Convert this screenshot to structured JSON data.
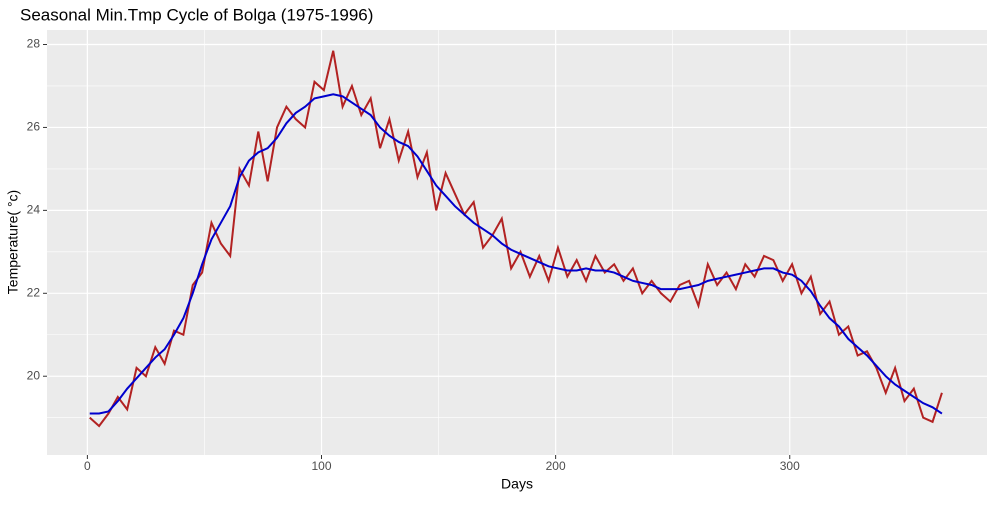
{
  "chart_data": {
    "type": "line",
    "title": "Seasonal Min.Tmp Cycle of Bolga (1975-1996)",
    "x_label": "Days",
    "y_label": "Temperature( °c)",
    "x": [
      1,
      5,
      9,
      13,
      17,
      21,
      25,
      29,
      33,
      37,
      41,
      45,
      49,
      53,
      57,
      61,
      65,
      69,
      73,
      77,
      81,
      85,
      89,
      93,
      97,
      101,
      105,
      109,
      113,
      117,
      121,
      125,
      129,
      133,
      137,
      141,
      145,
      149,
      153,
      157,
      161,
      165,
      169,
      173,
      177,
      181,
      185,
      189,
      193,
      197,
      201,
      205,
      209,
      213,
      217,
      221,
      225,
      229,
      233,
      237,
      241,
      245,
      249,
      253,
      257,
      261,
      265,
      269,
      273,
      277,
      281,
      285,
      289,
      293,
      297,
      301,
      305,
      309,
      313,
      317,
      321,
      325,
      329,
      333,
      337,
      341,
      345,
      349,
      353,
      357,
      361,
      365
    ],
    "series": [
      {
        "color": "#b22222",
        "values": [
          19.0,
          18.8,
          19.1,
          19.5,
          19.2,
          20.2,
          20.0,
          20.7,
          20.3,
          21.1,
          21.0,
          22.2,
          22.5,
          23.7,
          23.2,
          22.9,
          25.0,
          24.6,
          25.9,
          24.7,
          26.0,
          26.5,
          26.2,
          26.0,
          27.1,
          26.9,
          27.85,
          26.5,
          27.0,
          26.3,
          26.7,
          25.5,
          26.2,
          25.2,
          25.9,
          24.8,
          25.4,
          24.0,
          24.9,
          24.4,
          23.9,
          24.2,
          23.1,
          23.4,
          23.8,
          22.6,
          23.0,
          22.4,
          22.9,
          22.3,
          23.1,
          22.4,
          22.8,
          22.3,
          22.9,
          22.5,
          22.7,
          22.3,
          22.6,
          22.0,
          22.3,
          22.0,
          21.8,
          22.2,
          22.3,
          21.7,
          22.7,
          22.2,
          22.5,
          22.1,
          22.7,
          22.4,
          22.9,
          22.8,
          22.3,
          22.7,
          22.0,
          22.4,
          21.5,
          21.8,
          21.0,
          21.2,
          20.5,
          20.6,
          20.2,
          19.6,
          20.2,
          19.4,
          19.7,
          19.0,
          18.9,
          19.6
        ]
      },
      {
        "color": "#0000cd",
        "values": [
          19.1,
          19.1,
          19.15,
          19.4,
          19.7,
          19.95,
          20.2,
          20.45,
          20.65,
          21.0,
          21.4,
          22.0,
          22.7,
          23.3,
          23.7,
          24.1,
          24.8,
          25.2,
          25.4,
          25.5,
          25.75,
          26.1,
          26.35,
          26.5,
          26.7,
          26.75,
          26.8,
          26.75,
          26.6,
          26.45,
          26.3,
          26.0,
          25.8,
          25.65,
          25.55,
          25.3,
          24.95,
          24.6,
          24.35,
          24.1,
          23.9,
          23.7,
          23.55,
          23.4,
          23.2,
          23.05,
          22.95,
          22.85,
          22.75,
          22.65,
          22.6,
          22.55,
          22.55,
          22.6,
          22.55,
          22.55,
          22.5,
          22.4,
          22.3,
          22.25,
          22.2,
          22.1,
          22.1,
          22.1,
          22.15,
          22.2,
          22.3,
          22.35,
          22.4,
          22.45,
          22.5,
          22.55,
          22.6,
          22.6,
          22.5,
          22.45,
          22.3,
          22.05,
          21.7,
          21.4,
          21.2,
          20.9,
          20.7,
          20.5,
          20.25,
          20.0,
          19.8,
          19.65,
          19.5,
          19.35,
          19.25,
          19.1
        ]
      }
    ],
    "xlim": [
      -17.25,
      384.25
    ],
    "xticks": [
      0,
      100,
      200,
      300
    ],
    "minor_xticks": [
      50,
      150,
      250,
      350
    ],
    "ylim": [
      18.1,
      28.35
    ],
    "yticks": [
      20,
      22,
      24,
      26,
      28
    ],
    "minor_yticks": [
      19,
      21,
      23,
      25,
      27
    ],
    "grid": true
  }
}
